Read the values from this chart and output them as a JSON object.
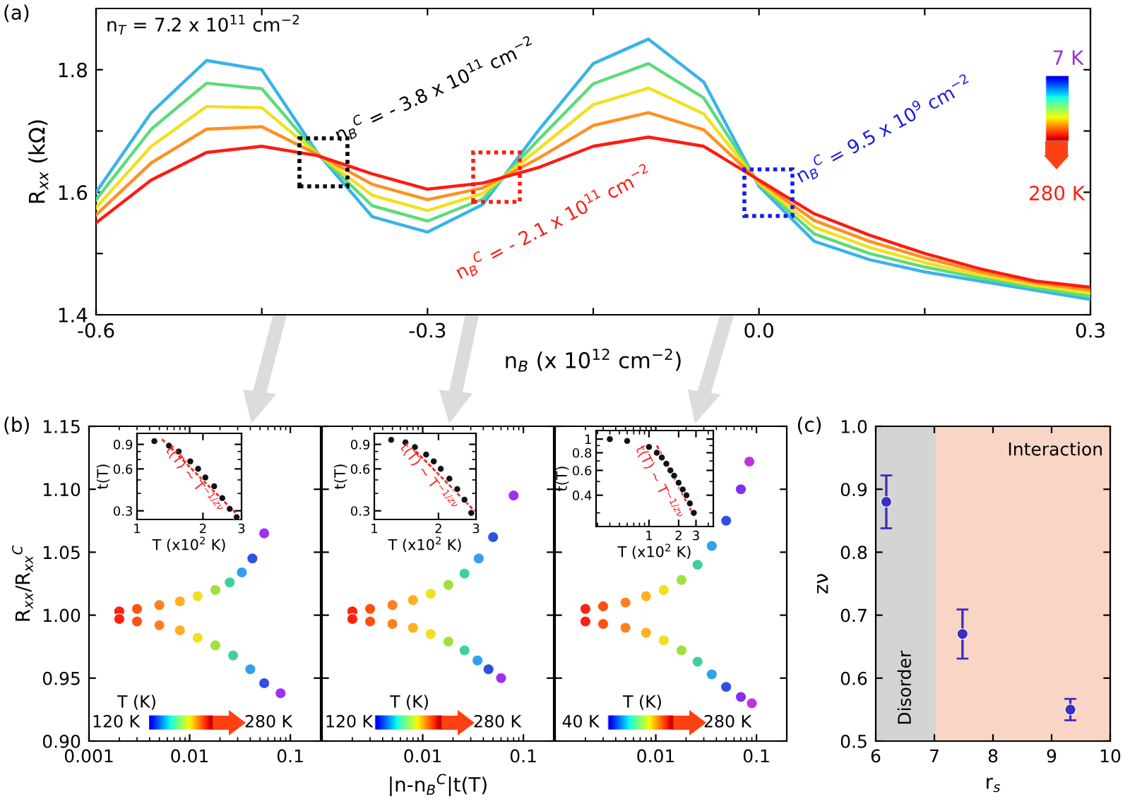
{
  "chart_data": [
    {
      "type": "line",
      "xlabel": "n$_{B}$ (x 10$^{12}$ cm$^{−2}$)",
      "ylabel": "R$_{xx}$ (kΩ)",
      "annotations": [
        "(a)",
        "n$_{T}$ = 7.2 x 10$^{11}$ cm$^{−2}$",
        "n$_{B}$$^{C}$ = - 3.8 x 10$^{11}$ cm$^{−2}$",
        "n$_{B}$$^{C}$ = - 2.1 x 10$^{11}$ cm$^{−2}$",
        "n$_{B}$$^{C}$ = 9.5 x 10$^{9}$ cm$^{−2}$",
        "7 K",
        "280 K"
      ],
      "x": [
        -0.6,
        -0.55,
        -0.5,
        -0.45,
        -0.4,
        -0.35,
        -0.3,
        -0.25,
        -0.2,
        -0.15,
        -0.1,
        -0.05,
        0.0,
        0.05,
        0.1,
        0.15,
        0.2,
        0.25,
        0.3
      ],
      "series": [
        {
          "color": "#38b4e8",
          "values": [
            1.6,
            1.73,
            1.815,
            1.8,
            1.665,
            1.56,
            1.535,
            1.58,
            1.7,
            1.81,
            1.85,
            1.78,
            1.61,
            1.52,
            1.49,
            1.47,
            1.455,
            1.44,
            1.425
          ]
        },
        {
          "color": "#5cdc78",
          "values": [
            1.588,
            1.703,
            1.778,
            1.769,
            1.664,
            1.578,
            1.553,
            1.589,
            1.685,
            1.777,
            1.81,
            1.754,
            1.613,
            1.532,
            1.5,
            1.478,
            1.46,
            1.444,
            1.43
          ]
        },
        {
          "color": "#f0e020",
          "values": [
            1.575,
            1.675,
            1.74,
            1.738,
            1.663,
            1.595,
            1.57,
            1.598,
            1.67,
            1.743,
            1.77,
            1.728,
            1.615,
            1.543,
            1.51,
            1.485,
            1.465,
            1.448,
            1.435
          ]
        },
        {
          "color": "#ff9020",
          "values": [
            1.563,
            1.648,
            1.703,
            1.707,
            1.662,
            1.613,
            1.588,
            1.607,
            1.655,
            1.709,
            1.73,
            1.702,
            1.618,
            1.554,
            1.52,
            1.493,
            1.47,
            1.452,
            1.44
          ]
        },
        {
          "color": "#ff1a10",
          "values": [
            1.55,
            1.62,
            1.665,
            1.675,
            1.66,
            1.63,
            1.605,
            1.615,
            1.64,
            1.675,
            1.69,
            1.675,
            1.62,
            1.565,
            1.53,
            1.5,
            1.475,
            1.455,
            1.445
          ]
        }
      ],
      "xlim": [
        -0.6,
        0.3
      ],
      "xticks": [
        -0.6,
        {
          "value": -0.45,
          "label": null
        },
        -0.3,
        {
          "value": -0.15,
          "label": null
        },
        {
          "value": 0.0,
          "label": "0.0"
        },
        {
          "value": 0.15,
          "label": null
        },
        0.3
      ],
      "ylim": [
        1.4,
        1.9
      ],
      "yticks": [
        1.4,
        {
          "value": 1.5,
          "label": null
        },
        1.6,
        {
          "value": 1.7,
          "label": null
        },
        1.8
      ],
      "marker": "none",
      "line_style": "solid"
    },
    {
      "type": "scatter",
      "ylabel": "R$_{xx}$/R$_{xx}$$^{C}$",
      "log": "x",
      "annotations": [
        "(b)",
        "T (K)",
        "120 K",
        "280 K"
      ],
      "series": [
        {
          "x": [
            0.002,
            0.003,
            0.005,
            0.008,
            0.012,
            0.018,
            0.025,
            0.033,
            0.042,
            0.055
          ],
          "values": [
            1.003,
            1.005,
            1.008,
            1.011,
            1.015,
            1.02,
            1.026,
            1.034,
            1.045,
            1.065
          ],
          "colors": [
            "#ff2010",
            "#ff5010",
            "#ff8020",
            "#ffb020",
            "#f0e020",
            "#a0e040",
            "#40d0a0",
            "#30a0f0",
            "#3050e0",
            "#a030f0"
          ]
        },
        {
          "x": [
            0.002,
            0.003,
            0.005,
            0.008,
            0.012,
            0.018,
            0.027,
            0.04,
            0.055,
            0.08
          ],
          "values": [
            0.997,
            0.995,
            0.992,
            0.988,
            0.982,
            0.976,
            0.968,
            0.957,
            0.946,
            0.938
          ],
          "colors": [
            "#ff2010",
            "#ff5010",
            "#ff8020",
            "#ffb020",
            "#f0e020",
            "#a0e040",
            "#40d0a0",
            "#30a0f0",
            "#3050e0",
            "#a030f0"
          ]
        }
      ],
      "xlim": [
        0.001,
        0.2
      ],
      "xticks": [
        0.001,
        0.01,
        0.1
      ],
      "ylim": [
        0.9,
        1.15
      ],
      "yticks": [
        {
          "value": 0.9,
          "label": "0.90"
        },
        {
          "value": 0.95,
          "label": "0.95"
        },
        {
          "value": 1.0,
          "label": "1.00"
        },
        {
          "value": 1.05,
          "label": "1.05"
        },
        {
          "value": 1.1,
          "label": "1.10"
        },
        {
          "value": 1.15,
          "label": "1.15"
        }
      ],
      "marker": "circle"
    },
    {
      "type": "scatter",
      "xlabel": "T (x10$^{2}$ K)",
      "ylabel": "t(T)",
      "log": "xy",
      "annotations": [
        "t(T) ~ T$^{−1/zν}$"
      ],
      "series": [
        {
          "x": [
            1.2,
            1.4,
            1.55,
            1.75,
            1.9,
            2.05,
            2.25,
            2.45,
            2.65,
            2.85
          ],
          "values": [
            0.95,
            0.88,
            0.8,
            0.68,
            0.6,
            0.52,
            0.45,
            0.37,
            0.31,
            0.27
          ],
          "color": "#111111",
          "marker": "circle"
        },
        {
          "type": "line",
          "x": [
            1.3,
            2.95
          ],
          "values": [
            0.98,
            0.27
          ],
          "color": "#ff2020",
          "line_style": "dashed",
          "marker": "none"
        }
      ],
      "xlim": [
        1,
        3
      ],
      "xticks": [
        1,
        2,
        3
      ],
      "ylim": [
        0.26,
        1.08
      ],
      "yticks": [
        0.3,
        0.6,
        0.9
      ]
    },
    {
      "type": "scatter",
      "xlabel": "|n-n$_{B}$$^{C}$|t(T)",
      "log": "x",
      "tick_labels": "x",
      "annotations": [
        "T (K)",
        "120 K",
        "280 K"
      ],
      "series": [
        {
          "x": [
            0.002,
            0.003,
            0.005,
            0.008,
            0.012,
            0.018,
            0.026,
            0.036,
            0.05,
            0.08
          ],
          "values": [
            1.003,
            1.005,
            1.008,
            1.012,
            1.017,
            1.024,
            1.033,
            1.045,
            1.062,
            1.095
          ],
          "colors": [
            "#ff2010",
            "#ff5010",
            "#ff8020",
            "#ffb020",
            "#f0e020",
            "#a0e040",
            "#40d0a0",
            "#30a0f0",
            "#3050e0",
            "#a030f0"
          ]
        },
        {
          "x": [
            0.002,
            0.003,
            0.005,
            0.008,
            0.012,
            0.018,
            0.026,
            0.035,
            0.045,
            0.06
          ],
          "values": [
            0.997,
            0.995,
            0.993,
            0.99,
            0.985,
            0.979,
            0.972,
            0.964,
            0.957,
            0.95
          ],
          "colors": [
            "#ff2010",
            "#ff5010",
            "#ff8020",
            "#ffb020",
            "#f0e020",
            "#a0e040",
            "#40d0a0",
            "#30a0f0",
            "#3050e0",
            "#a030f0"
          ]
        }
      ],
      "xlim": [
        0.001,
        0.2
      ],
      "xticks": [
        {
          "value": 0.001,
          "label": null
        },
        0.01,
        0.1
      ],
      "ylim": [
        0.9,
        1.15
      ],
      "yticks": [
        0.9,
        0.95,
        1.0,
        1.05,
        1.1,
        1.15
      ],
      "marker": "circle"
    },
    {
      "type": "scatter",
      "xlabel": "T (x10$^{2}$ K)",
      "ylabel": "t(T)",
      "log": "xy",
      "annotations": [
        "t(T) ~ T$^{−1/zν}$"
      ],
      "series": [
        {
          "x": [
            1.2,
            1.4,
            1.55,
            1.75,
            1.9,
            2.05,
            2.25,
            2.45,
            2.65,
            2.85
          ],
          "values": [
            0.97,
            0.93,
            0.86,
            0.76,
            0.68,
            0.6,
            0.51,
            0.43,
            0.36,
            0.29
          ],
          "color": "#111111",
          "marker": "circle"
        },
        {
          "type": "line",
          "x": [
            1.5,
            2.95
          ],
          "values": [
            0.86,
            0.3
          ],
          "color": "#ff2020",
          "line_style": "dashed",
          "marker": "none"
        }
      ],
      "xlim": [
        1,
        3
      ],
      "xticks": [
        1,
        2,
        3
      ],
      "ylim": [
        0.26,
        1.08
      ],
      "yticks": [
        0.3,
        0.6,
        0.9
      ]
    },
    {
      "type": "scatter",
      "log": "x",
      "tick_labels": "x",
      "annotations": [
        "T (K)",
        "40 K",
        "280 K"
      ],
      "series": [
        {
          "x": [
            0.002,
            0.003,
            0.005,
            0.008,
            0.012,
            0.018,
            0.026,
            0.036,
            0.05,
            0.07,
            0.085
          ],
          "values": [
            1.005,
            1.007,
            1.01,
            1.015,
            1.02,
            1.028,
            1.04,
            1.055,
            1.075,
            1.1,
            1.122
          ],
          "colors": [
            "#ff2010",
            "#ff5010",
            "#ff8020",
            "#ffb020",
            "#f0e020",
            "#a0e040",
            "#40d0a0",
            "#30a0f0",
            "#3050e0",
            "#8030f0",
            "#c030e0"
          ]
        },
        {
          "x": [
            0.002,
            0.003,
            0.005,
            0.008,
            0.012,
            0.018,
            0.026,
            0.036,
            0.05,
            0.07,
            0.09
          ],
          "values": [
            0.995,
            0.993,
            0.99,
            0.986,
            0.98,
            0.972,
            0.963,
            0.953,
            0.943,
            0.935,
            0.93
          ],
          "colors": [
            "#ff2010",
            "#ff5010",
            "#ff8020",
            "#ffb020",
            "#f0e020",
            "#a0e040",
            "#40d0a0",
            "#30a0f0",
            "#3050e0",
            "#8030f0",
            "#c030e0"
          ]
        }
      ],
      "xlim": [
        0.001,
        0.2
      ],
      "xticks": [
        {
          "value": 0.001,
          "label": null
        },
        0.01,
        0.1
      ],
      "ylim": [
        0.9,
        1.15
      ],
      "yticks": [
        0.9,
        0.95,
        1.0,
        1.05,
        1.1,
        1.15
      ],
      "marker": "circle"
    },
    {
      "type": "scatter",
      "xlabel": "T (x10$^{2}$ K)",
      "ylabel": "t(T)",
      "log": "xy",
      "annotations": [
        "t(T) ~ T$^{−1/zν}$"
      ],
      "series": [
        {
          "x": [
            0.4,
            0.6,
            1.0,
            1.2,
            1.35,
            1.5,
            1.65,
            1.8,
            2.0,
            2.2,
            2.4,
            2.6,
            2.85
          ],
          "values": [
            1.0,
            0.97,
            0.88,
            0.8,
            0.74,
            0.67,
            0.6,
            0.55,
            0.49,
            0.44,
            0.4,
            0.35,
            0.3
          ],
          "color": "#111111",
          "marker": "circle"
        },
        {
          "type": "line",
          "x": [
            1.2,
            2.9
          ],
          "values": [
            0.9,
            0.28
          ],
          "color": "#ff2020",
          "line_style": "dashed",
          "marker": "none"
        }
      ],
      "xlim": [
        0.29,
        4.5
      ],
      "xticks": [
        1,
        2,
        3
      ],
      "ylim": [
        0.24,
        1.15
      ],
      "yticks": [
        0.4,
        0.6,
        0.8,
        1
      ]
    },
    {
      "type": "scatter",
      "xlabel": "r$_{s}$",
      "ylabel": "zν",
      "annotations": [
        "(c)"
      ],
      "x": [
        6.18,
        7.48,
        9.32
      ],
      "values": [
        0.88,
        0.67,
        0.55
      ],
      "errors": [
        0.042,
        0.039,
        0.017
      ],
      "color": "#3a2fc0",
      "marker": "circle",
      "bands": [
        {
          "axis": "x",
          "from": 6,
          "to": 7.03,
          "label": "Disorder",
          "color": "#d4d4d4"
        },
        {
          "axis": "x",
          "from": 7.03,
          "to": 10,
          "label": "Interaction",
          "color": "#f8d5c5"
        }
      ],
      "xlim": [
        6,
        10
      ],
      "xticks": [
        6,
        7,
        8,
        9,
        10
      ],
      "ylim": [
        0.5,
        1.0
      ],
      "yticks": [
        0.5,
        0.6,
        0.7,
        0.8,
        0.9,
        {
          "value": 1.0,
          "label": "1.0"
        }
      ]
    }
  ]
}
